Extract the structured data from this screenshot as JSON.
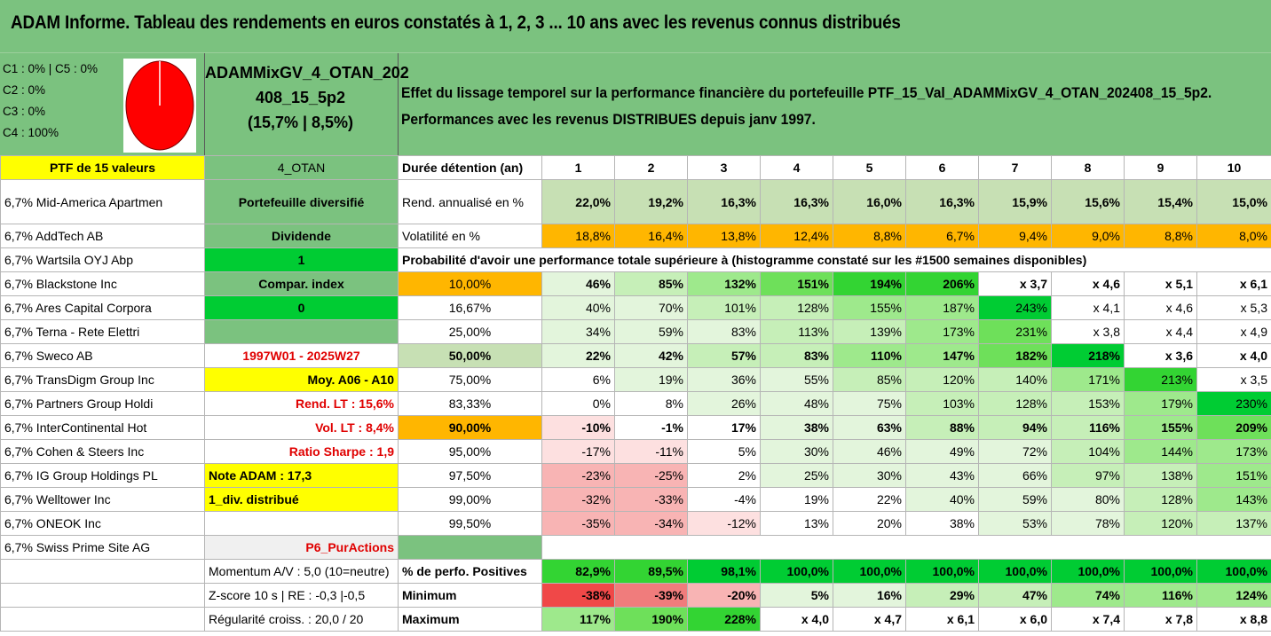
{
  "title": "ADAM Informe. Tableau des rendements en euros constatés à 1, 2, 3 ... 10 ans avec les revenus connus distribués",
  "header": {
    "c_lines": [
      "C1 : 0% | C5 : 0%",
      "C2 : 0%",
      "C3 : 0%",
      "C4 : 100%"
    ],
    "pie_color": "#ff0000",
    "portfolio_name": [
      "ADAMMixGV_4_OTAN_202",
      "408_15_5p2",
      "(15,7% | 8,5%)"
    ],
    "effect_lines": [
      "Effet du lissage temporel sur la performance financière du portefeuille PTF_15_Val_ADAMMixGV_4_OTAN_202408_15_5p2.",
      "Performances avec les revenus DISTRIBUES depuis janv 1997."
    ]
  },
  "ptf_label": "PTF de 15 valeurs",
  "otan_label": "4_OTAN",
  "duree_label": "Durée détention (an)",
  "years": [
    "1",
    "2",
    "3",
    "4",
    "5",
    "6",
    "7",
    "8",
    "9",
    "10"
  ],
  "holdings": [
    "6,7% Mid-America Apartmen",
    "6,7% AddTech AB",
    "6,7% Wartsila OYJ Abp",
    "6,7% Blackstone Inc",
    "6,7% Ares Capital Corpora",
    "6,7% Terna - Rete Elettri",
    "6,7% Sweco AB",
    "6,7% TransDigm Group Inc",
    "6,7% Partners Group Holdi",
    "6,7% InterContinental Hot",
    "6,7% Cohen & Steers Inc",
    "6,7% IG Group Holdings PL",
    "6,7% Welltower Inc",
    "6,7% ONEOK Inc",
    "6,7% Swiss Prime Site AG"
  ],
  "info_col": [
    "Portefeuille diversifié",
    "Dividende",
    "1",
    "Compar. index",
    "0",
    "",
    "1997W01 - 2025W27",
    "Moy. A06 - A10",
    "Rend. LT : 15,6%",
    "Vol. LT : 8,4%",
    "Ratio Sharpe : 1,9",
    "Note ADAM : 17,3",
    "1_div. distribué",
    "",
    "P6_PurActions"
  ],
  "rend_label": "Rend. annualisé en %",
  "rend_values": [
    "22,0%",
    "19,2%",
    "16,3%",
    "16,3%",
    "16,0%",
    "16,3%",
    "15,9%",
    "15,6%",
    "15,4%",
    "15,0%"
  ],
  "vol_label": "Volatilité en %",
  "vol_values": [
    "18,8%",
    "16,4%",
    "13,8%",
    "12,4%",
    "8,8%",
    "6,7%",
    "9,4%",
    "9,0%",
    "8,8%",
    "8,0%"
  ],
  "proba_label": "Probabilité d'avoir une performance totale supérieure à (histogramme constaté sur les #1500 semaines disponibles)",
  "proba_rows": [
    {
      "p": "10,00%",
      "v": [
        "46%",
        "85%",
        "132%",
        "151%",
        "194%",
        "206%",
        "x 3,7",
        "x 4,6",
        "x 5,1",
        "x 6,1"
      ]
    },
    {
      "p": "16,67%",
      "v": [
        "40%",
        "70%",
        "101%",
        "128%",
        "155%",
        "187%",
        "243%",
        "x 4,1",
        "x 4,6",
        "x 5,3"
      ]
    },
    {
      "p": "25,00%",
      "v": [
        "34%",
        "59%",
        "83%",
        "113%",
        "139%",
        "173%",
        "231%",
        "x 3,8",
        "x 4,4",
        "x 4,9"
      ]
    },
    {
      "p": "50,00%",
      "v": [
        "22%",
        "42%",
        "57%",
        "83%",
        "110%",
        "147%",
        "182%",
        "218%",
        "x 3,6",
        "x 4,0"
      ]
    },
    {
      "p": "75,00%",
      "v": [
        "6%",
        "19%",
        "36%",
        "55%",
        "85%",
        "120%",
        "140%",
        "171%",
        "213%",
        "x 3,5"
      ]
    },
    {
      "p": "83,33%",
      "v": [
        "0%",
        "8%",
        "26%",
        "48%",
        "75%",
        "103%",
        "128%",
        "153%",
        "179%",
        "230%"
      ]
    },
    {
      "p": "90,00%",
      "v": [
        "-10%",
        "-1%",
        "17%",
        "38%",
        "63%",
        "88%",
        "94%",
        "116%",
        "155%",
        "209%"
      ]
    },
    {
      "p": "95,00%",
      "v": [
        "-17%",
        "-11%",
        "5%",
        "30%",
        "46%",
        "49%",
        "72%",
        "104%",
        "144%",
        "173%"
      ]
    },
    {
      "p": "97,50%",
      "v": [
        "-23%",
        "-25%",
        "2%",
        "25%",
        "30%",
        "43%",
        "66%",
        "97%",
        "138%",
        "151%"
      ]
    },
    {
      "p": "99,00%",
      "v": [
        "-32%",
        "-33%",
        "-4%",
        "19%",
        "22%",
        "40%",
        "59%",
        "80%",
        "128%",
        "143%"
      ]
    },
    {
      "p": "99,50%",
      "v": [
        "-35%",
        "-34%",
        "-12%",
        "13%",
        "20%",
        "38%",
        "53%",
        "78%",
        "120%",
        "137%"
      ]
    }
  ],
  "bottom_rows": [
    {
      "info": "Momentum A/V : 5,0 (10=neutre)",
      "label": "% de perfo. Positives",
      "v": [
        "82,9%",
        "89,5%",
        "98,1%",
        "100,0%",
        "100,0%",
        "100,0%",
        "100,0%",
        "100,0%",
        "100,0%",
        "100,0%"
      ]
    },
    {
      "info": "Z-score 10 s | RE : -0,3 |-0,5",
      "label": "Minimum",
      "v": [
        "-38%",
        "-39%",
        "-20%",
        "5%",
        "16%",
        "29%",
        "47%",
        "74%",
        "116%",
        "124%"
      ]
    },
    {
      "info": "Régularité croiss. : 20,0 / 20",
      "label": "Maximum",
      "v": [
        "117%",
        "190%",
        "228%",
        "x 4,0",
        "x 4,7",
        "x 6,1",
        "x 6,0",
        "x 7,4",
        "x 7,8",
        "x 8,8"
      ]
    }
  ],
  "colors": {
    "title_bg": "#7bc27f",
    "yellow": "#ffff00",
    "bright_green": "#00cc33",
    "orange": "#ffb600",
    "red_text": "#e00000"
  }
}
